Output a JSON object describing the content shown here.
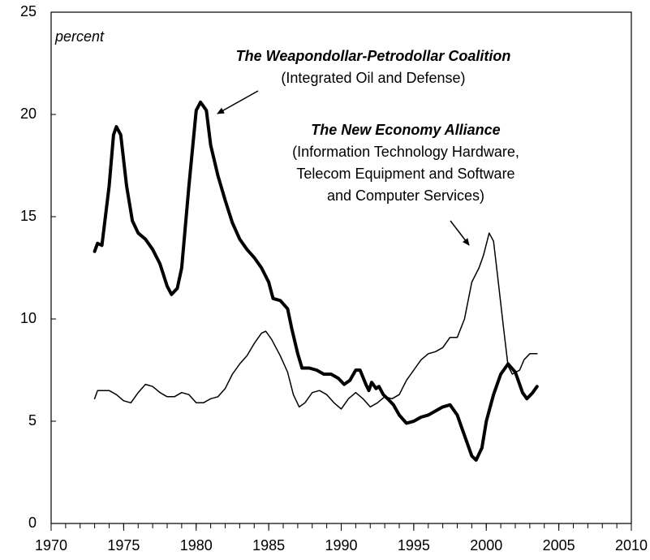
{
  "chart_data": {
    "type": "line",
    "annotation": "percent",
    "xlim": [
      1970,
      2010
    ],
    "xticks": [
      1970,
      1975,
      1980,
      1985,
      1990,
      1995,
      2000,
      2005,
      2010
    ],
    "ylim": [
      0,
      25
    ],
    "yticks": [
      0,
      5,
      10,
      15,
      20,
      25
    ],
    "series": [
      {
        "name": "The Weapondollar-Petrodollar Coalition",
        "description": [
          "(Integrated Oil and Defense)"
        ],
        "color": "#000000",
        "width": 4,
        "x": [
          1973.0,
          1973.2,
          1973.5,
          1974.0,
          1974.3,
          1974.5,
          1974.8,
          1975.2,
          1975.6,
          1976.0,
          1976.5,
          1977.0,
          1977.5,
          1978.0,
          1978.3,
          1978.7,
          1979.0,
          1979.5,
          1980.0,
          1980.3,
          1980.7,
          1981.0,
          1981.5,
          1982.0,
          1982.5,
          1983.0,
          1983.5,
          1984.0,
          1984.5,
          1985.0,
          1985.3,
          1985.8,
          1986.3,
          1986.6,
          1987.0,
          1987.3,
          1987.8,
          1988.3,
          1988.8,
          1989.3,
          1989.8,
          1990.2,
          1990.6,
          1991.0,
          1991.3,
          1991.7,
          1991.9,
          1992.1,
          1992.4,
          1992.6,
          1992.9,
          1993.2,
          1993.6,
          1994.0,
          1994.5,
          1995.0,
          1995.5,
          1996.0,
          1996.5,
          1997.0,
          1997.5,
          1998.0,
          1998.5,
          1999.0,
          1999.3,
          1999.7,
          2000.0,
          2000.5,
          2001.0,
          2001.5,
          2002.0,
          2002.5,
          2002.8,
          2003.2,
          2003.5
        ],
        "values": [
          13.3,
          13.7,
          13.6,
          16.5,
          19.0,
          19.4,
          19.0,
          16.5,
          14.8,
          14.2,
          13.9,
          13.4,
          12.7,
          11.6,
          11.2,
          11.5,
          12.5,
          16.5,
          20.2,
          20.6,
          20.2,
          18.5,
          17.0,
          15.8,
          14.7,
          13.9,
          13.4,
          13.0,
          12.5,
          11.8,
          11.0,
          10.9,
          10.5,
          9.5,
          8.3,
          7.6,
          7.6,
          7.5,
          7.3,
          7.3,
          7.1,
          6.8,
          7.0,
          7.5,
          7.5,
          6.8,
          6.5,
          6.9,
          6.6,
          6.7,
          6.3,
          6.1,
          5.8,
          5.3,
          4.9,
          5.0,
          5.2,
          5.3,
          5.5,
          5.7,
          5.8,
          5.3,
          4.3,
          3.3,
          3.1,
          3.7,
          5.0,
          6.3,
          7.3,
          7.8,
          7.4,
          6.4,
          6.1,
          6.4,
          6.7
        ]
      },
      {
        "name": "The New Economy Alliance",
        "description": [
          "(Information Technology Hardware,",
          "Telecom Equipment and Software",
          "and Computer Services)"
        ],
        "color": "#000000",
        "width": 1.5,
        "x": [
          1973.0,
          1973.2,
          1974.0,
          1974.5,
          1975.0,
          1975.5,
          1976.0,
          1976.5,
          1977.0,
          1977.5,
          1978.0,
          1978.5,
          1979.0,
          1979.5,
          1980.0,
          1980.5,
          1981.0,
          1981.5,
          1982.0,
          1982.5,
          1983.0,
          1983.5,
          1984.0,
          1984.5,
          1984.8,
          1985.2,
          1985.8,
          1986.3,
          1986.7,
          1987.1,
          1987.5,
          1988.0,
          1988.5,
          1989.0,
          1989.5,
          1990.0,
          1990.5,
          1991.0,
          1991.5,
          1992.0,
          1992.5,
          1993.0,
          1993.5,
          1994.0,
          1994.5,
          1995.0,
          1995.5,
          1996.0,
          1996.5,
          1997.0,
          1997.5,
          1998.0,
          1998.5,
          1999.0,
          1999.5,
          1999.8,
          2000.2,
          2000.5,
          2000.8,
          2001.2,
          2001.5,
          2001.8,
          2002.3,
          2002.6,
          2003.0,
          2003.5
        ],
        "values": [
          6.1,
          6.5,
          6.5,
          6.3,
          6.0,
          5.9,
          6.4,
          6.8,
          6.7,
          6.4,
          6.2,
          6.2,
          6.4,
          6.3,
          5.9,
          5.9,
          6.1,
          6.2,
          6.6,
          7.3,
          7.8,
          8.2,
          8.8,
          9.3,
          9.4,
          9.0,
          8.2,
          7.4,
          6.3,
          5.7,
          5.9,
          6.4,
          6.5,
          6.3,
          5.9,
          5.6,
          6.1,
          6.4,
          6.1,
          5.7,
          5.9,
          6.2,
          6.1,
          6.3,
          7.0,
          7.5,
          8.0,
          8.3,
          8.4,
          8.6,
          9.1,
          9.1,
          10.0,
          11.8,
          12.5,
          13.1,
          14.2,
          13.8,
          12.0,
          9.5,
          7.7,
          7.3,
          7.5,
          8.0,
          8.3,
          8.3
        ]
      }
    ]
  }
}
